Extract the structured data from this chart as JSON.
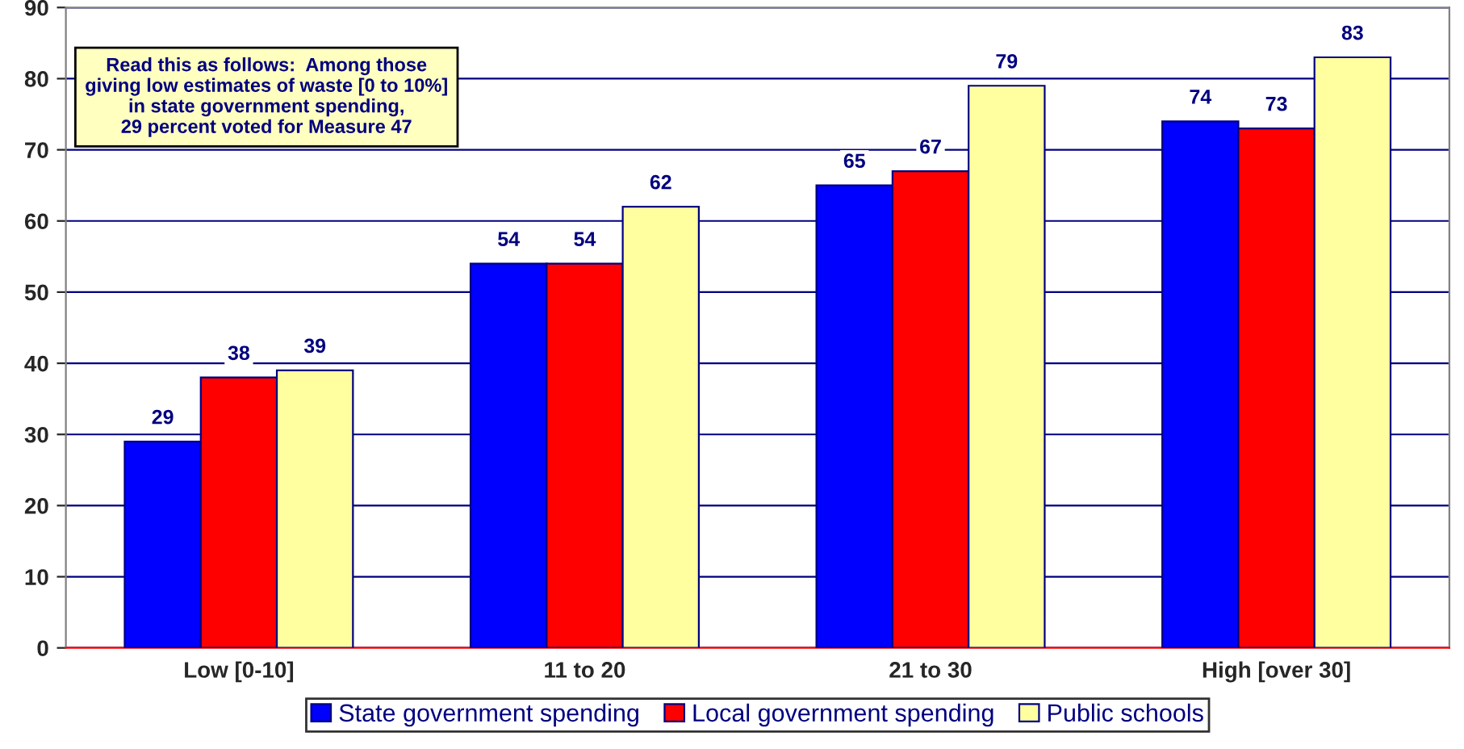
{
  "chart_data": {
    "type": "bar",
    "categories": [
      "Low [0-10]",
      "11 to 20",
      "21 to 30",
      "High [over 30]"
    ],
    "series": [
      {
        "name": "State government spending",
        "color": "#0000ff",
        "values": [
          29,
          54,
          65,
          74
        ]
      },
      {
        "name": "Local government spending",
        "color": "#ff0000",
        "values": [
          38,
          54,
          67,
          73
        ]
      },
      {
        "name": "Public schools",
        "color": "#ffffa0",
        "values": [
          39,
          62,
          79,
          83
        ]
      }
    ],
    "ylim": [
      0,
      90
    ],
    "yticks": [
      0,
      10,
      20,
      30,
      40,
      50,
      60,
      70,
      80,
      90
    ],
    "grid": "y",
    "legend": "bottom",
    "data_labels": true,
    "annotations": [
      "Read this as follows:  Among those\ngiving low estimates of waste [0 to 10%]\nin state government spending,\n29 percent voted for Measure 47"
    ]
  }
}
